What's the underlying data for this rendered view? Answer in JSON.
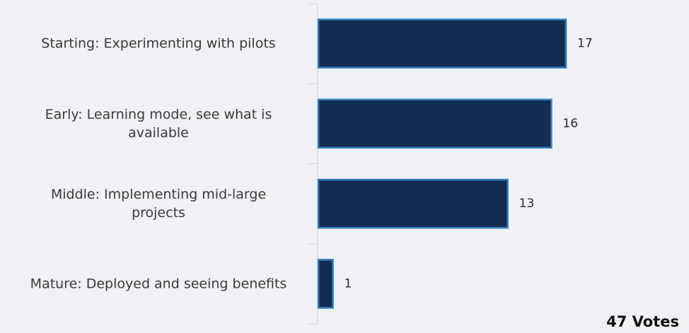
{
  "chart_data": {
    "type": "bar",
    "orientation": "horizontal",
    "categories": [
      [
        "Starting:  Experimenting with pilots"
      ],
      [
        "Early:  Learning mode, see what is",
        "available"
      ],
      [
        "Middle: Implementing mid-large",
        "projects"
      ],
      [
        "Mature: Deployed and seeing benefits"
      ]
    ],
    "values": [
      17,
      16,
      13,
      1
    ],
    "xlim": [
      0,
      30
    ],
    "grid": false,
    "legend": "none",
    "colors": {
      "bar_fill": "#142c4f",
      "bar_stroke": "#2e7fc1",
      "axis": "#d0d2d6"
    }
  },
  "footer": {
    "votes_label": "47 Votes"
  }
}
